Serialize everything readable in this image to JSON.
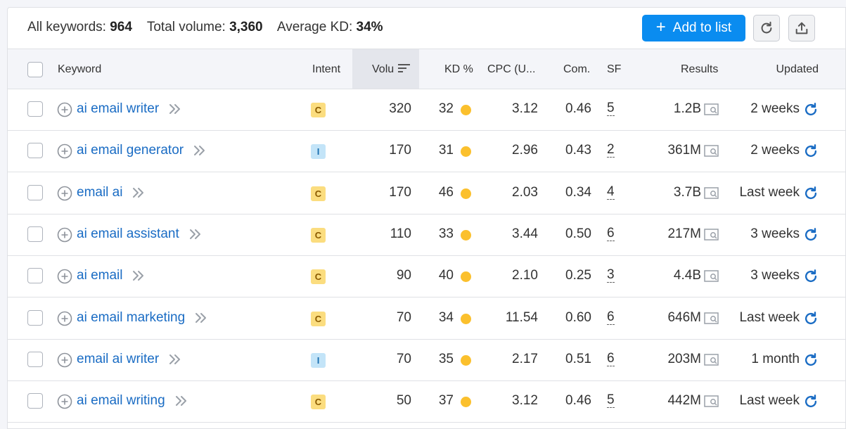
{
  "summary": {
    "all_keywords_label": "All keywords:",
    "all_keywords_value": "964",
    "total_volume_label": "Total volume:",
    "total_volume_value": "3,360",
    "avg_kd_label": "Average KD:",
    "avg_kd_value": "34%"
  },
  "toolbar": {
    "add_to_list_label": "Add to list",
    "add_icon": "plus-icon",
    "refresh_icon": "refresh-icon",
    "export_icon": "export-icon",
    "accent_color": "#0a8cf0"
  },
  "table": {
    "headers": {
      "keyword": "Keyword",
      "intent": "Intent",
      "volume": "Volu",
      "kd": "KD %",
      "cpc": "CPC (U...",
      "com": "Com.",
      "sf": "SF",
      "results": "Results",
      "updated": "Updated"
    },
    "rows": [
      {
        "keyword": "ai email writer",
        "intent": "C",
        "volume": "320",
        "kd": "32",
        "cpc": "3.12",
        "com": "0.46",
        "sf": "5",
        "results": "1.2B",
        "updated": "2 weeks"
      },
      {
        "keyword": "ai email generator",
        "intent": "I",
        "volume": "170",
        "kd": "31",
        "cpc": "2.96",
        "com": "0.43",
        "sf": "2",
        "results": "361M",
        "updated": "2 weeks"
      },
      {
        "keyword": "email ai",
        "intent": "C",
        "volume": "170",
        "kd": "46",
        "cpc": "2.03",
        "com": "0.34",
        "sf": "4",
        "results": "3.7B",
        "updated": "Last week"
      },
      {
        "keyword": "ai email assistant",
        "intent": "C",
        "volume": "110",
        "kd": "33",
        "cpc": "3.44",
        "com": "0.50",
        "sf": "6",
        "results": "217M",
        "updated": "3 weeks"
      },
      {
        "keyword": "ai email",
        "intent": "C",
        "volume": "90",
        "kd": "40",
        "cpc": "2.10",
        "com": "0.25",
        "sf": "3",
        "results": "4.4B",
        "updated": "3 weeks"
      },
      {
        "keyword": "ai email marketing",
        "intent": "C",
        "volume": "70",
        "kd": "34",
        "cpc": "11.54",
        "com": "0.60",
        "sf": "6",
        "results": "646M",
        "updated": "Last week"
      },
      {
        "keyword": "email ai writer",
        "intent": "I",
        "volume": "70",
        "kd": "35",
        "cpc": "2.17",
        "com": "0.51",
        "sf": "6",
        "results": "203M",
        "updated": "1 month"
      },
      {
        "keyword": "ai email writing",
        "intent": "C",
        "volume": "50",
        "kd": "37",
        "cpc": "3.12",
        "com": "0.46",
        "sf": "5",
        "results": "442M",
        "updated": "Last week"
      }
    ]
  },
  "colors": {
    "intent_commercial": "#fbdd7f",
    "intent_informational": "#c3e4f8",
    "kd_dot": "#fbc02d",
    "link": "#1a6cc4"
  }
}
